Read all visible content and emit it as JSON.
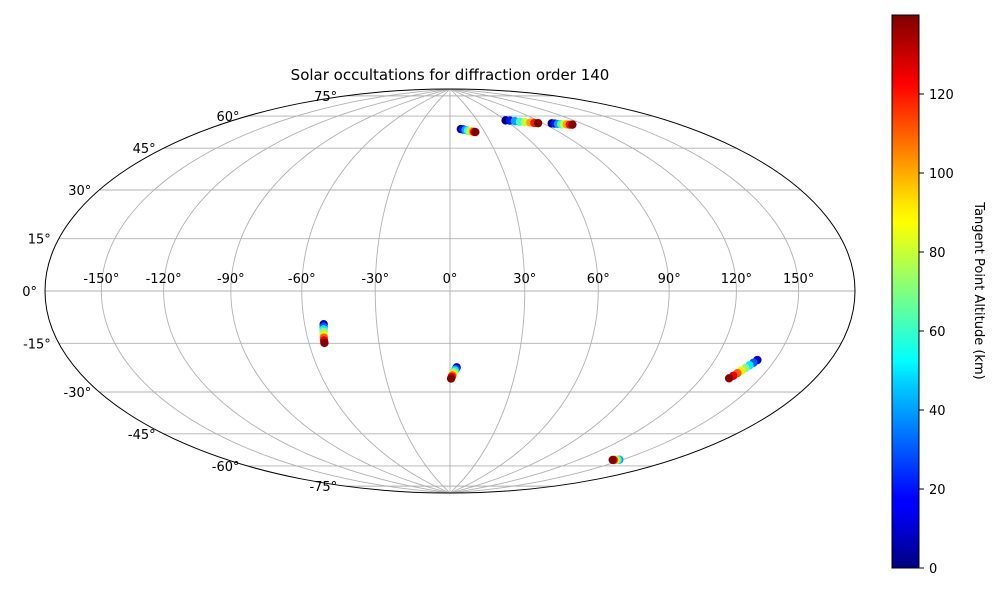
{
  "chart_data": {
    "type": "scatter",
    "projection": "hammer",
    "title": "Solar occultations for diffraction order 140",
    "xlabel": "",
    "ylabel": "",
    "grid": true,
    "lon_ticks": [
      "-150°",
      "-120°",
      "-90°",
      "-60°",
      "-30°",
      "0°",
      "30°",
      "60°",
      "90°",
      "120°",
      "150°"
    ],
    "lon_tick_values": [
      -150,
      -120,
      -90,
      -60,
      -30,
      0,
      30,
      60,
      90,
      120,
      150
    ],
    "lat_ticks": [
      "75°",
      "60°",
      "45°",
      "30°",
      "15°",
      "0°",
      "-15°",
      "-30°",
      "-45°",
      "-60°",
      "-75°"
    ],
    "lat_tick_values": [
      75,
      60,
      45,
      30,
      15,
      0,
      -15,
      -30,
      -45,
      -60,
      -75
    ],
    "colorbar": {
      "label": "Tangent Point Altitude (km)",
      "colormap": "jet",
      "range": [
        0,
        140
      ],
      "ticks": [
        "0",
        "20",
        "40",
        "60",
        "80",
        "100",
        "120"
      ],
      "tick_values": [
        0,
        20,
        40,
        60,
        80,
        100,
        120
      ]
    },
    "series": [
      {
        "points": [
          [
            10,
            69.0,
            0
          ],
          [
            12,
            68.8,
            20
          ],
          [
            14,
            68.5,
            40
          ],
          [
            16,
            68.2,
            60
          ],
          [
            18,
            67.9,
            80
          ],
          [
            20,
            67.7,
            100
          ],
          [
            21,
            67.5,
            120
          ],
          [
            22,
            67.4,
            139
          ]
        ]
      },
      {
        "points": [
          [
            60,
            72.0,
            0
          ],
          [
            64,
            71.7,
            20
          ],
          [
            68,
            71.2,
            40
          ],
          [
            72,
            70.7,
            60
          ],
          [
            76,
            70.2,
            80
          ],
          [
            80,
            69.7,
            100
          ],
          [
            83,
            69.3,
            120
          ],
          [
            86,
            69.0,
            139
          ]
        ]
      },
      {
        "points": [
          [
            97,
            68.0,
            0
          ],
          [
            99,
            67.7,
            20
          ],
          [
            101,
            67.3,
            40
          ],
          [
            103,
            67.0,
            60
          ],
          [
            105,
            66.8,
            80
          ],
          [
            107,
            66.5,
            100
          ],
          [
            109,
            66.2,
            120
          ],
          [
            111,
            66.0,
            139
          ]
        ]
      },
      {
        "points": [
          [
            -52,
            -13.0,
            10
          ],
          [
            -52.2,
            -14.0,
            30
          ],
          [
            -52.4,
            -15.0,
            50
          ],
          [
            -52.6,
            -16.0,
            70
          ],
          [
            -52.8,
            -17.2,
            90
          ],
          [
            -53.0,
            -18.3,
            110
          ],
          [
            -53.2,
            -19.4,
            125
          ],
          [
            -53.3,
            -20.4,
            139
          ]
        ]
      },
      {
        "points": [
          [
            3.0,
            -31.0,
            10
          ],
          [
            2.6,
            -31.7,
            30
          ],
          [
            2.2,
            -32.3,
            50
          ],
          [
            1.8,
            -33.0,
            70
          ],
          [
            1.4,
            -33.7,
            90
          ],
          [
            1.1,
            -34.4,
            110
          ],
          [
            0.8,
            -35.0,
            125
          ],
          [
            0.5,
            -35.7,
            139
          ]
        ]
      },
      {
        "points": [
          [
            141,
            -23.0,
            10
          ],
          [
            140,
            -24.0,
            30
          ],
          [
            139,
            -25.0,
            50
          ],
          [
            138,
            -26.0,
            70
          ],
          [
            137,
            -27.0,
            90
          ],
          [
            136,
            -28.0,
            110
          ],
          [
            135,
            -29.0,
            125
          ],
          [
            134,
            -30.0,
            139
          ]
        ]
      },
      {
        "points": [
          [
            148,
            -62.5,
            40
          ],
          [
            147,
            -62.7,
            60
          ],
          [
            146,
            -62.9,
            90
          ],
          [
            145,
            -63.1,
            115
          ],
          [
            144,
            -63.2,
            139
          ]
        ]
      }
    ]
  }
}
